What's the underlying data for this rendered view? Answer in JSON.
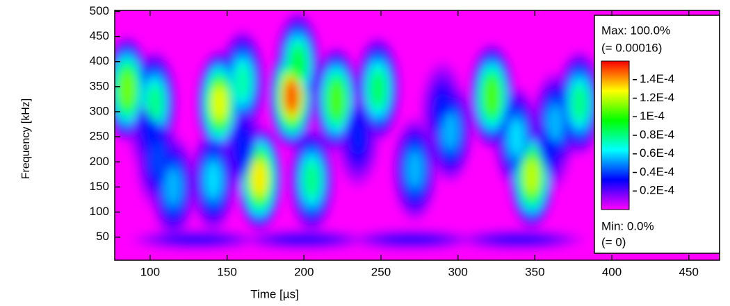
{
  "chart_data": {
    "type": "heatmap",
    "x_label": "Time [µs]",
    "y_label": "Frequency [kHz]",
    "xlim": [
      77,
      470
    ],
    "xticks": [
      100,
      150,
      200,
      250,
      300,
      350,
      400,
      450
    ],
    "ylim": [
      4,
      502
    ],
    "yticks": [
      50,
      100,
      150,
      200,
      250,
      300,
      350,
      400,
      450,
      500
    ],
    "clim": [
      0,
      0.00016
    ],
    "colormap": [
      "#ff00ff",
      "#0000ff",
      "#00ffff",
      "#00ff00",
      "#ffff00",
      "#ff0000"
    ],
    "colorbar_ticks": [
      {
        "value": 0.00014,
        "label": "1.4E-4"
      },
      {
        "value": 0.00012,
        "label": "1.2E-4"
      },
      {
        "value": 0.0001,
        "label": "1E-4"
      },
      {
        "value": 8e-05,
        "label": "0.8E-4"
      },
      {
        "value": 6e-05,
        "label": "0.6E-4"
      },
      {
        "value": 4e-05,
        "label": "0.4E-4"
      },
      {
        "value": 2e-05,
        "label": "0.2E-4"
      }
    ],
    "max_label": "Max: 100.0%",
    "max_value_label": "(= 0.00016)",
    "min_label": "Min: 0.0%",
    "min_value_label": "(= 0)",
    "blobs": [
      {
        "x": 130,
        "y": 45,
        "value": 3e-05
      },
      {
        "x": 200,
        "y": 45,
        "value": 3e-05
      },
      {
        "x": 270,
        "y": 45,
        "value": 3e-05
      },
      {
        "x": 340,
        "y": 45,
        "value": 3e-05
      },
      {
        "x": 100,
        "y": 270,
        "value": 3.5e-05
      },
      {
        "x": 160,
        "y": 230,
        "value": 3.5e-05
      },
      {
        "x": 235,
        "y": 250,
        "value": 3.5e-05
      },
      {
        "x": 290,
        "y": 300,
        "value": 3.5e-05
      },
      {
        "x": 360,
        "y": 240,
        "value": 3.5e-05
      },
      {
        "x": 105,
        "y": 206,
        "value": 4e-05
      },
      {
        "x": 115,
        "y": 150,
        "value": 5.5e-05
      },
      {
        "x": 141,
        "y": 164,
        "value": 6e-05
      },
      {
        "x": 295,
        "y": 262,
        "value": 5.5e-05
      },
      {
        "x": 338,
        "y": 248,
        "value": 6e-05
      },
      {
        "x": 363,
        "y": 276,
        "value": 5.5e-05
      },
      {
        "x": 272,
        "y": 185,
        "value": 5.5e-05
      },
      {
        "x": 160,
        "y": 359,
        "value": 7.5e-05
      },
      {
        "x": 103,
        "y": 317,
        "value": 8e-05
      },
      {
        "x": 205,
        "y": 164,
        "value": 8e-05
      },
      {
        "x": 379,
        "y": 317,
        "value": 8e-05
      },
      {
        "x": 248,
        "y": 345,
        "value": 8.5e-05
      },
      {
        "x": 196,
        "y": 394,
        "value": 9e-05
      },
      {
        "x": 221,
        "y": 324,
        "value": 0.000105
      },
      {
        "x": 322,
        "y": 331,
        "value": 0.000105
      },
      {
        "x": 85,
        "y": 345,
        "value": 0.00011
      },
      {
        "x": 348,
        "y": 171,
        "value": 0.00012
      },
      {
        "x": 145,
        "y": 317,
        "value": 0.000125
      },
      {
        "x": 171,
        "y": 167,
        "value": 0.00013
      },
      {
        "x": 192,
        "y": 331,
        "value": 0.00015
      }
    ]
  }
}
